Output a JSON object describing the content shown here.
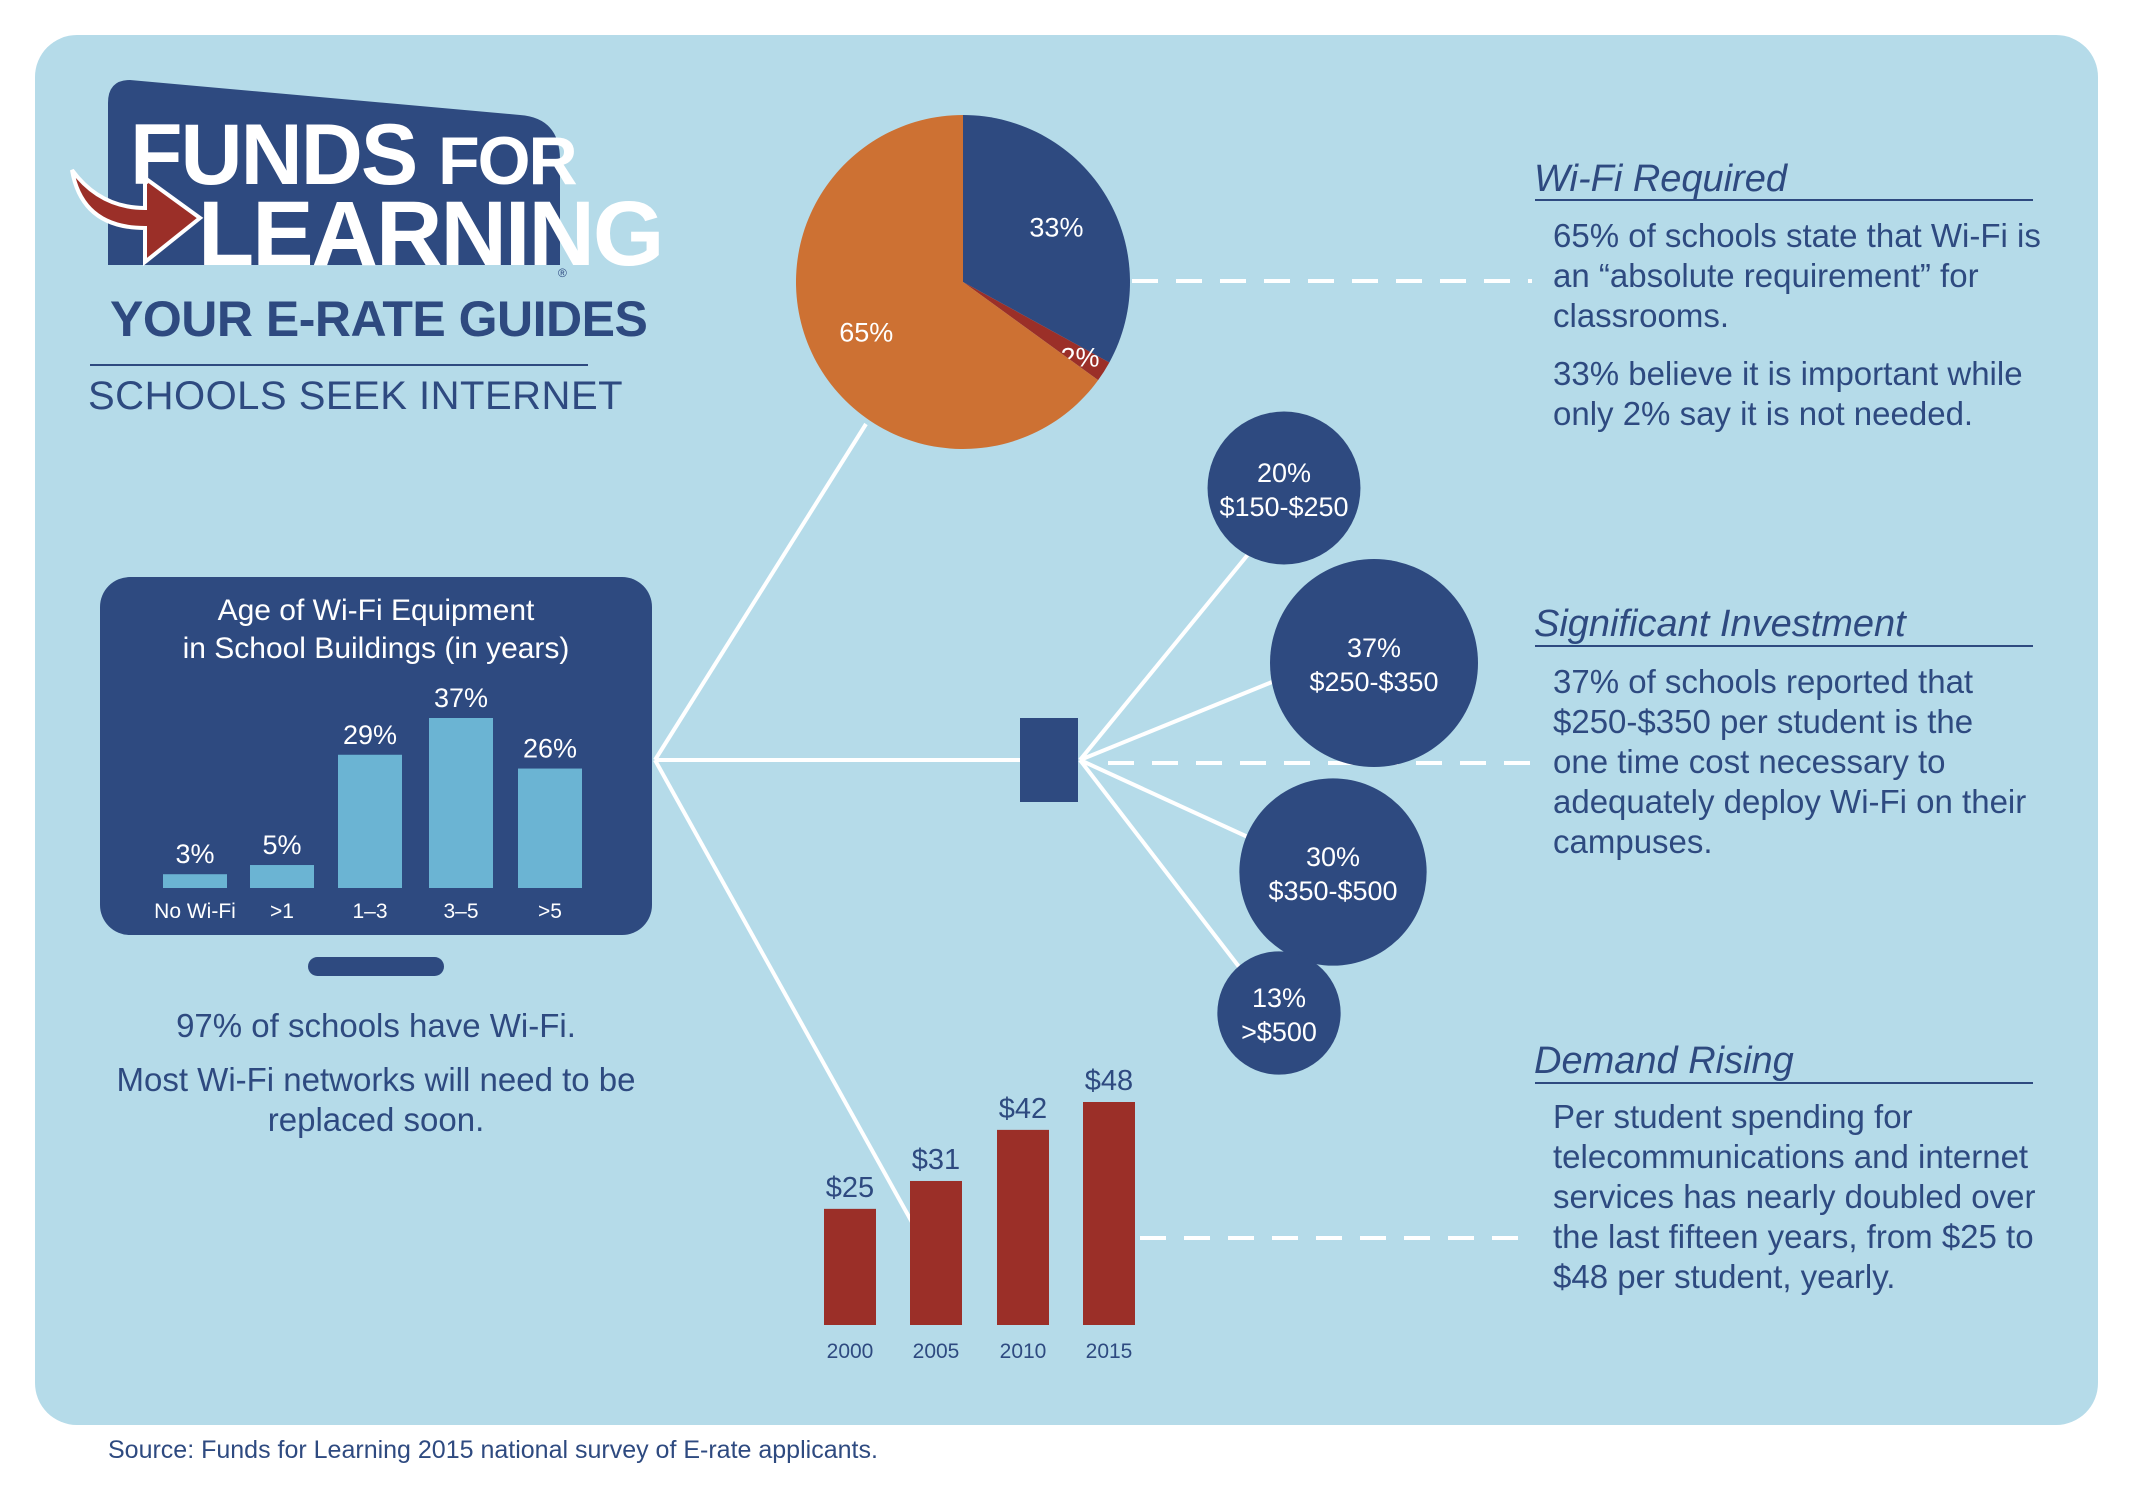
{
  "brand": {
    "line1_funds": "FUNDS",
    "line1_for": "FOR",
    "line2": "LEARNING",
    "registered": "®",
    "tagline": "YOUR E-RATE GUIDES",
    "subhead": "SCHOOLS SEEK INTERNET",
    "colors": {
      "navy": "#2e4a80",
      "arrow": "#9b2f28",
      "background": "#b5dbe9"
    }
  },
  "sections": {
    "wifi_required": {
      "title": "Wi-Fi Required",
      "body": [
        "65% of schools state that Wi-Fi is an “absolute requirement” for classrooms.",
        "33% believe it is important while only 2% say it is not needed."
      ]
    },
    "significant_investment": {
      "title": "Significant Investment",
      "body": [
        "37% of schools reported that $250-$350 per student is the one time cost necessary to adequately deploy Wi-Fi on their campuses."
      ]
    },
    "demand_rising": {
      "title": "Demand Rising",
      "body": [
        "Per student spending for telecommunications and internet services has nearly doubled over the last fifteen years, from $25 to $48 per student, yearly."
      ]
    }
  },
  "monitor": {
    "title_line1": "Age of Wi-Fi Equipment",
    "title_line2": "in School Buildings (in years)",
    "caption": [
      "97% of schools have Wi-Fi.",
      "Most Wi-Fi networks will need to be replaced soon."
    ]
  },
  "source": "Source: Funds for Learning 2015 national survey of E-rate applicants.",
  "chart_data": [
    {
      "type": "pie",
      "slices": [
        {
          "label": "33%",
          "value": 33,
          "color": "#2e4a80"
        },
        {
          "label": "2%",
          "value": 2,
          "color": "#9b2f28"
        },
        {
          "label": "65%",
          "value": 65,
          "color": "#cd7133"
        }
      ]
    },
    {
      "type": "bar",
      "title": "Age of Wi-Fi Equipment in School Buildings (in years)",
      "categories": [
        "No Wi-Fi",
        ">1",
        "1–3",
        "3–5",
        ">5"
      ],
      "values": [
        3,
        5,
        29,
        37,
        26
      ],
      "data_labels": [
        "3%",
        "5%",
        "29%",
        "37%",
        "26%"
      ],
      "ylim": [
        0,
        37
      ],
      "color": "#6bb4d3"
    },
    {
      "type": "bubble",
      "items": [
        {
          "percent": "20%",
          "range": "$150-$250",
          "value": 20
        },
        {
          "percent": "37%",
          "range": "$250-$350",
          "value": 37
        },
        {
          "percent": "30%",
          "range": "$350-$500",
          "value": 30
        },
        {
          "percent": "13%",
          "range": ">$500",
          "value": 13
        }
      ],
      "color": "#2e4a80"
    },
    {
      "type": "bar",
      "categories": [
        "2000",
        "2005",
        "2010",
        "2015"
      ],
      "values": [
        25,
        31,
        42,
        48
      ],
      "data_labels": [
        "$25",
        "$31",
        "$42",
        "$48"
      ],
      "ylim": [
        0,
        48
      ],
      "color": "#9b2f28"
    }
  ]
}
